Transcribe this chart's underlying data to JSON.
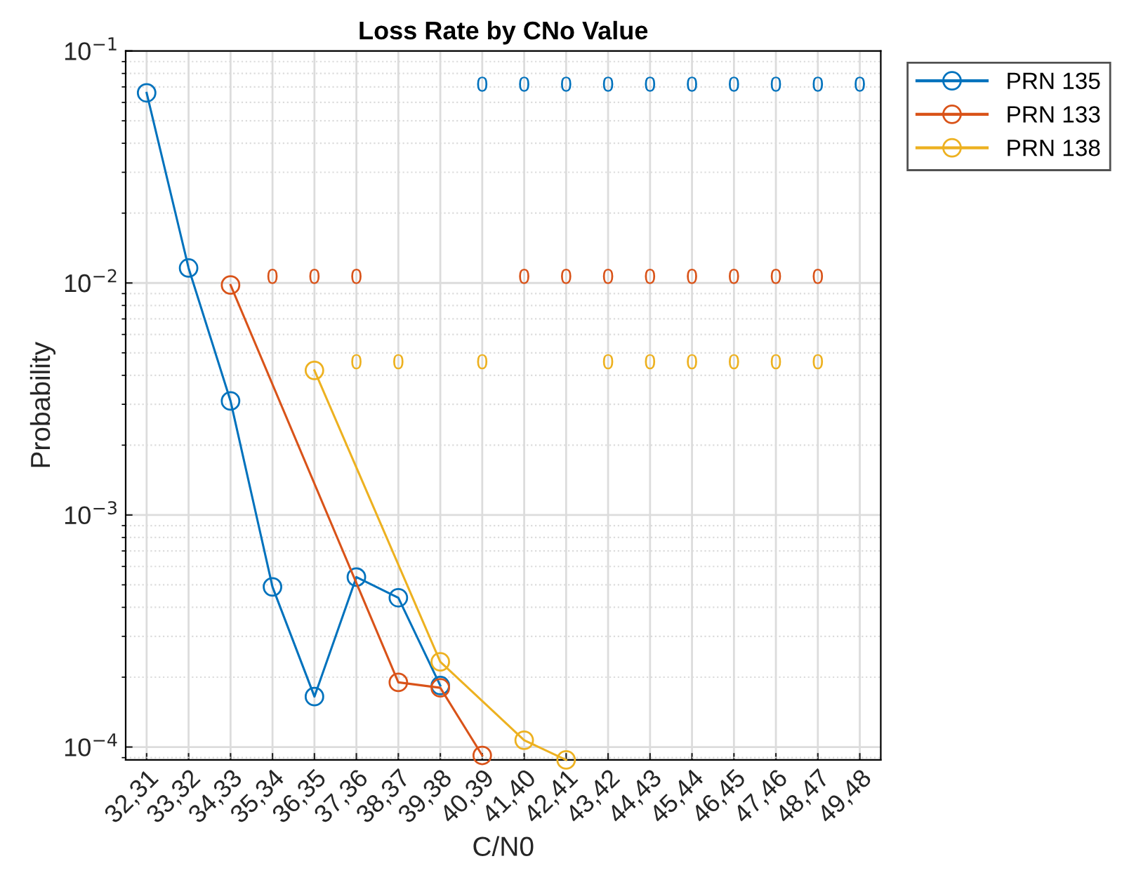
{
  "chart_data": {
    "type": "line",
    "title": "Loss Rate by CNo Value",
    "xlabel": "C/N0",
    "ylabel": "Probability",
    "categories": [
      "32,31",
      "33,32",
      "34,33",
      "35,34",
      "36,35",
      "37,36",
      "38,37",
      "39,38",
      "40,39",
      "41,40",
      "42,41",
      "43,42",
      "44,43",
      "45,44",
      "46,45",
      "47,46",
      "48,47",
      "49,48"
    ],
    "series": [
      {
        "name": "PRN 135",
        "color": "#0072bd",
        "values": [
          0.066,
          0.0116,
          0.0031,
          0.00049,
          0.000165,
          0.00054,
          0.00044,
          0.000184,
          null,
          null,
          null,
          null,
          null,
          null,
          null,
          null,
          null,
          null
        ],
        "value_labels": [
          null,
          null,
          null,
          null,
          null,
          null,
          null,
          null,
          "0",
          "0",
          "0",
          "0",
          "0",
          "0",
          "0",
          "0",
          "0",
          "0"
        ]
      },
      {
        "name": "PRN 133",
        "color": "#d95319",
        "values": [
          null,
          null,
          0.0098,
          null,
          null,
          null,
          0.00019,
          0.00018,
          9.2e-05,
          null,
          null,
          null,
          null,
          null,
          null,
          null,
          null,
          null
        ],
        "value_labels": [
          null,
          null,
          null,
          "0",
          "0",
          "0",
          null,
          null,
          null,
          "0",
          "0",
          "0",
          "0",
          "0",
          "0",
          "0",
          "0",
          null
        ]
      },
      {
        "name": "PRN 138",
        "color": "#edb120",
        "values": [
          null,
          null,
          null,
          null,
          0.0042,
          null,
          null,
          0.000233,
          null,
          0.000107,
          8.8e-05,
          null,
          null,
          null,
          null,
          null,
          null,
          null
        ],
        "value_labels": [
          null,
          null,
          null,
          null,
          null,
          "0",
          "0",
          null,
          "0",
          null,
          null,
          "0",
          "0",
          "0",
          "0",
          "0",
          "0",
          null
        ]
      }
    ],
    "log": "y",
    "ylim": [
      8.8e-05,
      0.1
    ],
    "yticks": [
      {
        "value": 0.0001,
        "label": "10$^{−4}$"
      },
      {
        "value": 0.001,
        "label": "10$^{−3}$"
      },
      {
        "value": 0.01,
        "label": "10$^{−2}$"
      },
      {
        "value": 0.1,
        "label": "10$^{−1}$"
      }
    ],
    "grid": true,
    "legend": "top right",
    "marker": "circle",
    "line_style": "solid"
  }
}
